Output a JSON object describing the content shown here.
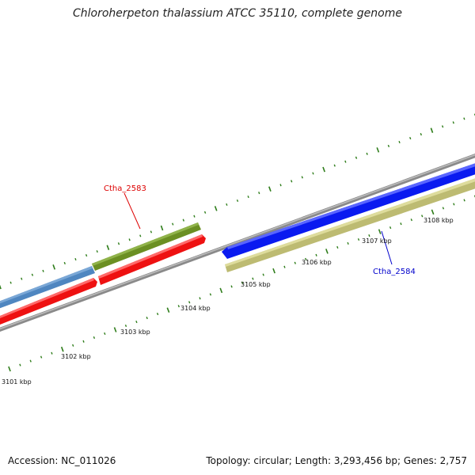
{
  "title": "Chloroherpeton thalassium ATCC 35110, complete genome",
  "footer": {
    "accession": "Accession: NC_011026",
    "summary": "Topology: circular; Length: 3,293,456 bp; Genes: 2,757"
  },
  "colors": {
    "backbone": "#8a8a8a",
    "tick": "#2e7d1a",
    "blue_gene": "#4f86c0",
    "olive_gene": "#6b8f23",
    "red_gene": "#ee1111",
    "dark_blue_gene": "#0a1af0",
    "khaki_gene": "#bdbb72",
    "label_red": "#dd0000",
    "label_blue": "#0000cc"
  },
  "scale": {
    "unit": "kbp",
    "tick_labels": [
      "3101 kbp",
      "3102 kbp",
      "3103 kbp",
      "3104 kbp",
      "3105 kbp",
      "3106 kbp",
      "3107 kbp",
      "3108 kbp"
    ]
  },
  "genes": [
    {
      "id": "blue-forward",
      "strand": "outer",
      "color": "#4f86c0",
      "arrow": "none"
    },
    {
      "id": "olive-forward",
      "strand": "outer",
      "color": "#6b8f23",
      "arrow": "none"
    },
    {
      "id": "red-reverse-1",
      "strand": "inner",
      "color": "#ee1111",
      "arrow": "right"
    },
    {
      "id": "red-reverse-2",
      "strand": "inner",
      "color": "#ee1111",
      "arrow": "right"
    },
    {
      "id": "blue-reverse",
      "strand": "inner",
      "color": "#0a1af0",
      "arrow": "left"
    },
    {
      "id": "khaki-reverse",
      "strand": "inner",
      "color": "#bdbb72",
      "arrow": "none"
    }
  ],
  "labels": [
    {
      "text": "Ctha_2583",
      "color": "#dd0000"
    },
    {
      "text": "Ctha_2584",
      "color": "#0000cc"
    }
  ]
}
